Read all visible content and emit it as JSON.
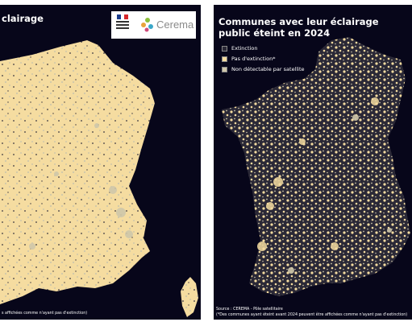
{
  "left_panel": {
    "title": "clairage",
    "footnote": "s affichées comme n'ayant pas d'extinction)",
    "logos": {
      "republique_text": "RÉPUBLIQUE FRANÇAISE",
      "cerema_name": "Cerema"
    }
  },
  "right_panel": {
    "title_line1": "Communes avec leur éclairage",
    "title_line2": "public éteint en 2024",
    "legend": [
      {
        "label": "Extinction",
        "color": "#2a2836"
      },
      {
        "label": "Pas d'extinction*",
        "color": "#f5dca0"
      },
      {
        "label": "Non détectable par satellite",
        "color": "#cfc7aa"
      }
    ],
    "source": "Source : CEREMA - Pôle satellitaire",
    "footnote": "(*Des communes ayant éteint avant 2024 peuvent être affichées comme n'ayant pas d'extinction)"
  },
  "colors": {
    "background": "#07061a",
    "land": "#f5dca0",
    "extinction": "#2a2836",
    "not_detectable": "#cfc7aa"
  }
}
